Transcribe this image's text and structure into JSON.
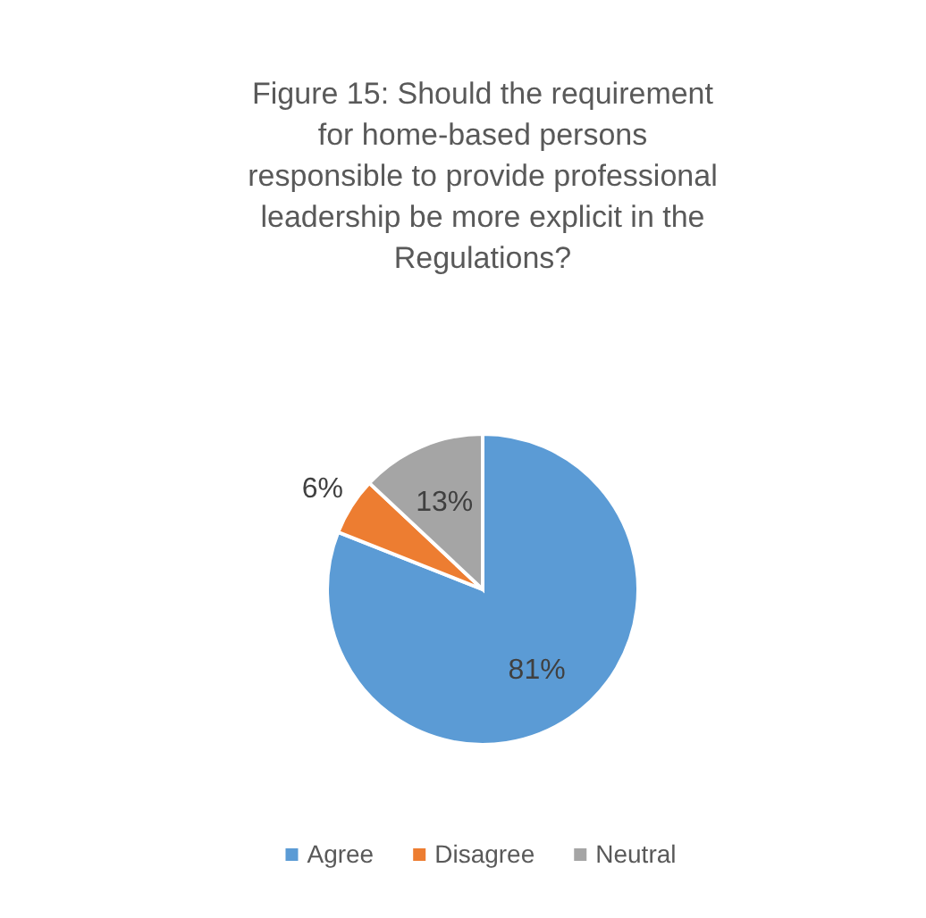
{
  "chart_data": {
    "type": "pie",
    "title": "Figure 15: Should the requirement for home-based persons responsible to provide professional leadership be more explicit in the Regulations?",
    "categories": [
      "Agree",
      "Disagree",
      "Neutral"
    ],
    "values": [
      81,
      6,
      13
    ],
    "colors": [
      "#5b9bd5",
      "#ed7d31",
      "#a5a5a5"
    ],
    "value_labels": [
      "81%",
      "6%",
      "13%"
    ],
    "legend": "bottom"
  }
}
